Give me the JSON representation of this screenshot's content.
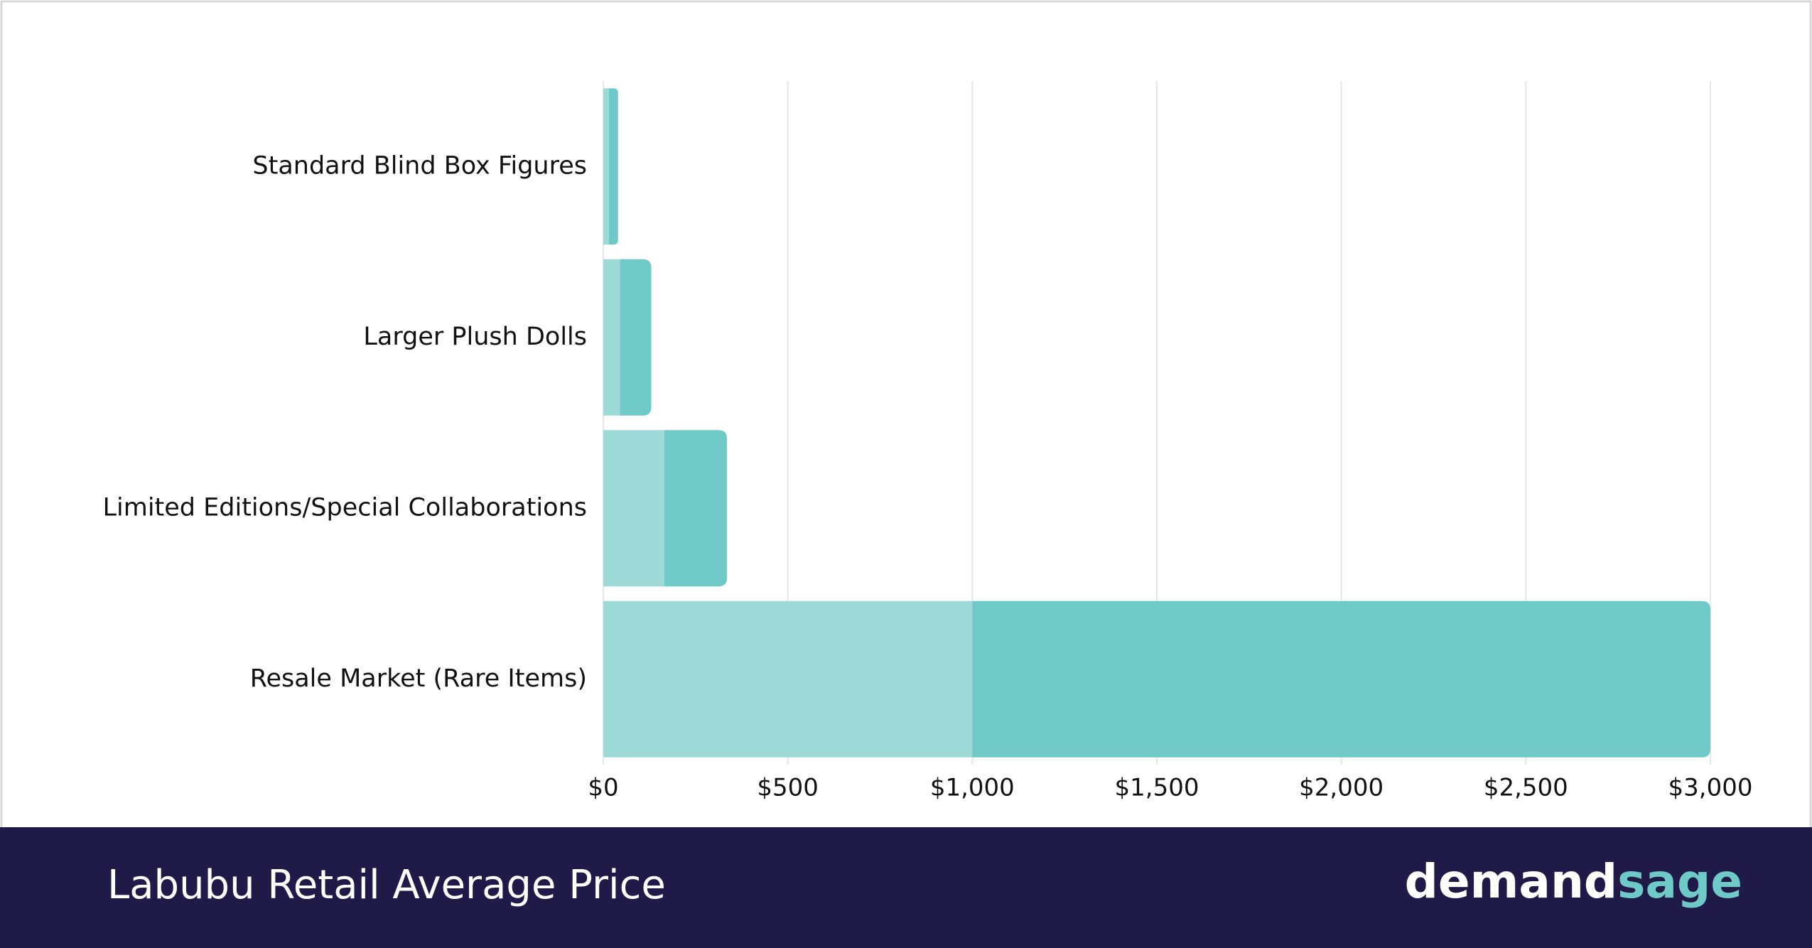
{
  "chart_data": {
    "type": "stacked-bar-horizontal",
    "title": "Labubu Retail Average Price",
    "categories": [
      "Standard Blind Box Figures",
      "Larger Plush Dolls",
      "Limited Editions/Special Collaborations",
      "Resale Market (Rare Items)"
    ],
    "series": [
      {
        "color": "#9edbd8",
        "values": [
          15,
          45,
          165,
          1000
        ]
      },
      {
        "color": "#6fc9c7",
        "values": [
          25,
          85,
          170,
          2000
        ]
      }
    ],
    "xlim": [
      0,
      3000
    ],
    "xticks": [
      {
        "value": 0,
        "label": "$0"
      },
      {
        "value": 500,
        "label": "$500"
      },
      {
        "value": 1000,
        "label": "$1,000"
      },
      {
        "value": 1500,
        "label": "$1,500"
      },
      {
        "value": 2000,
        "label": "$2,000"
      },
      {
        "value": 2500,
        "label": "$2,500"
      },
      {
        "value": 3000,
        "label": "$3,000"
      }
    ],
    "grid": true
  },
  "footer": {
    "brand_first": "demand",
    "brand_second": "sage"
  }
}
